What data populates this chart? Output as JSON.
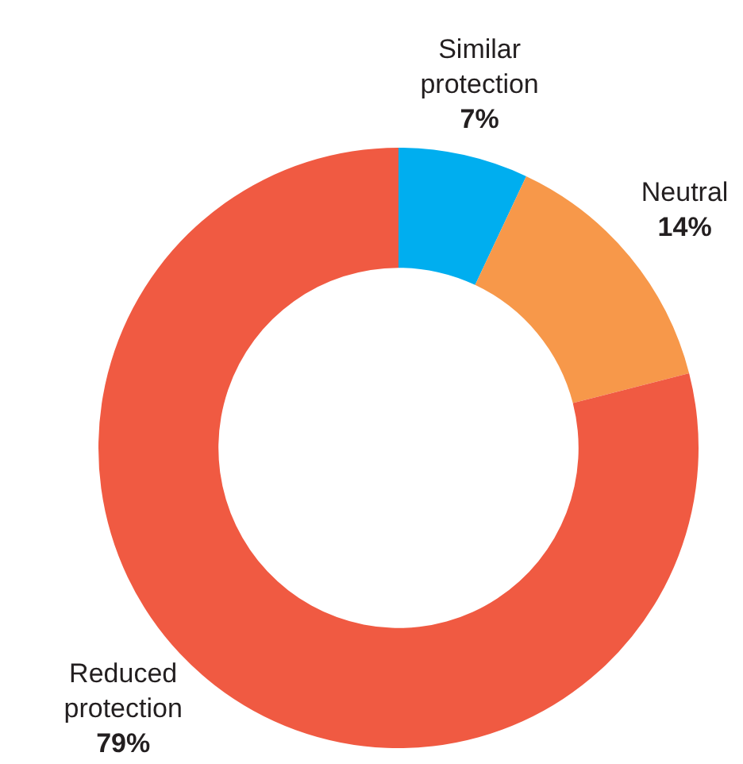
{
  "chart_data": {
    "type": "donut",
    "categories": [
      "Similar protection",
      "Neutral",
      "Reduced protection"
    ],
    "values": [
      7,
      14,
      79
    ],
    "value_labels": [
      "7%",
      "14%",
      "79%"
    ],
    "colors": [
      "#00aeef",
      "#f7984a",
      "#f05a42"
    ],
    "legend": false
  }
}
